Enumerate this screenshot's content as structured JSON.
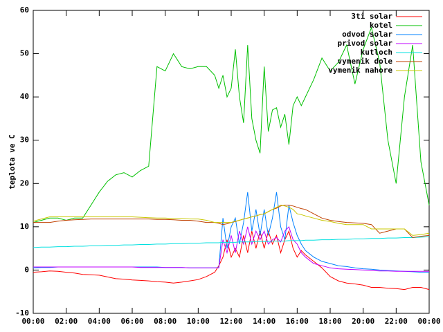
{
  "chart_data": {
    "type": "line",
    "y_label": "teplota ve C",
    "xlim": [
      0,
      24
    ],
    "ylim": [
      -10,
      60
    ],
    "yticks": [
      -10,
      0,
      10,
      20,
      30,
      40,
      50,
      60
    ],
    "xticks": [
      {
        "value": 0,
        "label": "00:00"
      },
      {
        "value": 2,
        "label": "02:00"
      },
      {
        "value": 4,
        "label": "04:00"
      },
      {
        "value": 6,
        "label": "06:00"
      },
      {
        "value": 8,
        "label": "08:00"
      },
      {
        "value": 10,
        "label": "10:00"
      },
      {
        "value": 12,
        "label": "12:00"
      },
      {
        "value": 14,
        "label": "14:00"
      },
      {
        "value": 16,
        "label": "16:00"
      },
      {
        "value": 18,
        "label": "18:00"
      },
      {
        "value": 20,
        "label": "20:00"
      },
      {
        "value": 22,
        "label": "22:00"
      },
      {
        "value": 24,
        "label": "00:00"
      }
    ],
    "legend": "top-right",
    "x": [
      0,
      0.5,
      1,
      1.5,
      2,
      2.5,
      3,
      3.5,
      4,
      4.5,
      5,
      5.5,
      6,
      6.5,
      7,
      7.5,
      8,
      8.5,
      9,
      9.5,
      10,
      10.5,
      11,
      11.25,
      11.5,
      11.75,
      12,
      12.25,
      12.5,
      12.75,
      13,
      13.25,
      13.5,
      13.75,
      14,
      14.25,
      14.5,
      14.75,
      15,
      15.25,
      15.5,
      15.75,
      16,
      16.25,
      16.5,
      17,
      17.5,
      18,
      18.5,
      19,
      19.5,
      20,
      20.5,
      21,
      21.5,
      22,
      22.5,
      23,
      23.5,
      24
    ],
    "series": [
      {
        "name": "3ti solar",
        "color": "#ff0000",
        "values": [
          -0.5,
          -0.4,
          -0.2,
          -0.3,
          -0.5,
          -0.7,
          -1,
          -1.1,
          -1.2,
          -1.6,
          -2,
          -2.1,
          -2.3,
          -2.4,
          -2.5,
          -2.7,
          -2.8,
          -3,
          -2.8,
          -2.5,
          -2.2,
          -1.5,
          -0.5,
          1,
          3,
          7,
          3,
          5,
          3,
          8,
          4,
          9,
          5,
          9,
          5,
          9,
          6,
          8,
          4,
          7,
          9,
          5,
          3,
          4.5,
          3.5,
          2,
          0.5,
          -1.5,
          -2.5,
          -3,
          -3.2,
          -3.5,
          -4,
          -4,
          -4.2,
          -4.3,
          -4.5,
          -4,
          -4,
          -4.5
        ]
      },
      {
        "name": "kotel",
        "color": "#00c000",
        "values": [
          11,
          11.5,
          12,
          12,
          11.5,
          12,
          12,
          15,
          18,
          20.5,
          22,
          22.5,
          21.5,
          23,
          24,
          47,
          46,
          50,
          47,
          46.5,
          47,
          47,
          45,
          42,
          45,
          40,
          42,
          51,
          40,
          34,
          52,
          35,
          30,
          27,
          47,
          32,
          37,
          37.5,
          33,
          36,
          29,
          38,
          40,
          38,
          40,
          44,
          49,
          46,
          48,
          52,
          43,
          51,
          56,
          48,
          30,
          20,
          40,
          52,
          25,
          15
        ]
      },
      {
        "name": "odvod solar",
        "color": "#0080ff",
        "values": [
          0.5,
          0.6,
          0.6,
          0.7,
          0.7,
          0.7,
          0.7,
          0.7,
          0.7,
          0.7,
          0.7,
          0.7,
          0.7,
          0.7,
          0.7,
          0.7,
          0.6,
          0.6,
          0.6,
          0.5,
          0.5,
          0.5,
          0.5,
          0.6,
          12,
          5,
          10,
          12,
          6,
          11,
          18,
          9,
          14,
          8,
          14,
          8,
          12,
          18,
          10,
          7,
          15,
          11,
          8,
          6,
          4.5,
          3,
          2,
          1.5,
          1,
          0.8,
          0.5,
          0.3,
          0.2,
          0,
          -0.1,
          -0.2,
          -0.3,
          -0.4,
          -0.5,
          -0.5
        ]
      },
      {
        "name": "privod solar",
        "color": "#c000ff",
        "values": [
          0.7,
          0.7,
          0.7,
          0.7,
          0.7,
          0.7,
          0.7,
          0.7,
          0.7,
          0.7,
          0.7,
          0.7,
          0.7,
          0.6,
          0.6,
          0.6,
          0.6,
          0.6,
          0.6,
          0.5,
          0.5,
          0.5,
          0.5,
          0.5,
          7,
          4,
          8,
          4,
          9,
          6,
          10,
          6,
          9,
          7,
          9,
          6,
          7,
          7.5,
          6.5,
          9,
          10,
          7,
          6,
          4,
          3,
          1.5,
          1,
          0.5,
          0.3,
          0.2,
          0.1,
          0,
          -0.1,
          -0.2,
          -0.2,
          -0.3,
          -0.3,
          -0.3,
          -0.3,
          -0.3
        ]
      },
      {
        "name": "kutloch",
        "color": "#00e0e0",
        "values": [
          5.2,
          5.3,
          5.3,
          5.4,
          5.4,
          5.5,
          5.5,
          5.6,
          5.6,
          5.7,
          5.7,
          5.8,
          5.8,
          5.9,
          5.9,
          6.0,
          6.0,
          6.1,
          6.1,
          6.2,
          6.2,
          6.3,
          6.3,
          6.3,
          6.4,
          6.4,
          6.4,
          6.4,
          6.5,
          6.5,
          6.5,
          6.5,
          6.6,
          6.6,
          6.6,
          6.6,
          6.7,
          6.7,
          6.7,
          6.7,
          6.8,
          6.8,
          6.8,
          6.8,
          6.9,
          6.9,
          7.0,
          7.0,
          7.1,
          7.1,
          7.2,
          7.2,
          7.3,
          7.3,
          7.4,
          7.4,
          7.5,
          7.5,
          7.6,
          7.7
        ]
      },
      {
        "name": "vymenik dole",
        "color": "#c04000",
        "values": [
          11,
          11,
          11,
          11.3,
          11.5,
          11.6,
          11.7,
          11.8,
          11.8,
          11.8,
          11.8,
          11.8,
          11.8,
          11.8,
          11.8,
          11.7,
          11.7,
          11.6,
          11.5,
          11.5,
          11.3,
          11,
          11,
          10.8,
          10.5,
          10.7,
          11,
          11.2,
          11.5,
          11.8,
          12,
          12.3,
          12.5,
          12.8,
          13,
          13.5,
          14,
          14.3,
          14.8,
          15,
          15,
          14.8,
          14.5,
          14.2,
          14,
          13,
          12,
          11.5,
          11.2,
          11,
          10.9,
          10.8,
          10.5,
          8.5,
          9,
          9.5,
          9.5,
          7.5,
          7.8,
          8
        ]
      },
      {
        "name": "vymenik nahore",
        "color": "#c8c800",
        "values": [
          11.3,
          11.8,
          12.3,
          12.3,
          12.3,
          12.3,
          12.3,
          12.3,
          12.3,
          12.3,
          12.3,
          12.3,
          12.3,
          12.2,
          12.1,
          12,
          12,
          11.9,
          11.9,
          11.8,
          11.8,
          11.5,
          11,
          11,
          11,
          11,
          11,
          11.3,
          11.5,
          11.8,
          12,
          12.3,
          12.5,
          12.8,
          13,
          13.5,
          14,
          14.5,
          15,
          14.8,
          14.5,
          14,
          13,
          12.8,
          12.5,
          12,
          11.5,
          11.2,
          10.8,
          10.5,
          10.5,
          10.5,
          9.5,
          9.5,
          9.5,
          9.5,
          9.5,
          8,
          8.2,
          8.5
        ]
      }
    ]
  }
}
